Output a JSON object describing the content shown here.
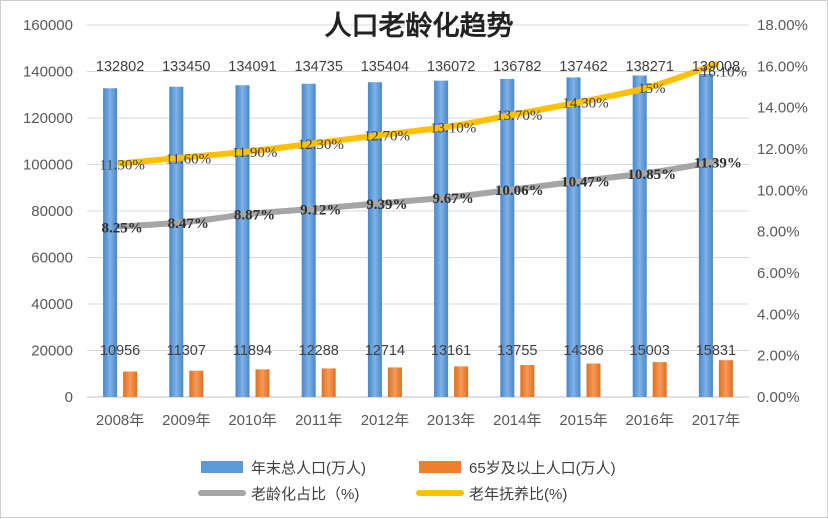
{
  "chart_data": {
    "type": "bar",
    "title": "人口老龄化趋势",
    "categories": [
      "2008年",
      "2009年",
      "2010年",
      "2011年",
      "2012年",
      "2013年",
      "2014年",
      "2015年",
      "2016年",
      "2017年"
    ],
    "series": [
      {
        "name": "年末总人口(万人)",
        "type": "bar",
        "axis": "left",
        "color": "#5b9bd5",
        "values": [
          132802,
          133450,
          134091,
          134735,
          135404,
          136072,
          136782,
          137462,
          138271,
          139008
        ],
        "labels": [
          "132802",
          "133450",
          "134091",
          "134735",
          "135404",
          "136072",
          "136782",
          "137462",
          "138271",
          "139008"
        ]
      },
      {
        "name": "65岁及以上人口(万人)",
        "type": "bar",
        "axis": "left",
        "color": "#ed7d31",
        "values": [
          10956,
          11307,
          11894,
          12288,
          12714,
          13161,
          13755,
          14386,
          15003,
          15831
        ],
        "labels": [
          "10956",
          "11307",
          "11894",
          "12288",
          "12714",
          "13161",
          "13755",
          "14386",
          "15003",
          "15831"
        ]
      },
      {
        "name": "老龄化占比（%)",
        "type": "line",
        "axis": "right",
        "color": "#a5a5a5",
        "values": [
          8.25,
          8.47,
          8.87,
          9.12,
          9.39,
          9.67,
          10.06,
          10.47,
          10.85,
          11.39
        ],
        "labels": [
          "8.25%",
          "8.47%",
          "8.87%",
          "9.12%",
          "9.39%",
          "9.67%",
          "10.06%",
          "10.47%",
          "10.85%",
          "11.39%"
        ]
      },
      {
        "name": "老年抚养比(%)",
        "type": "line",
        "axis": "right",
        "color": "#ffc000",
        "values": [
          11.3,
          11.6,
          11.9,
          12.3,
          12.7,
          13.1,
          13.7,
          14.3,
          15.0,
          16.1
        ],
        "labels": [
          "11.30%",
          "11.60%",
          "11.90%",
          "12.30%",
          "12.70%",
          "13.10%",
          "13.70%",
          "14.30%",
          "15%",
          "16.10%"
        ]
      }
    ],
    "ylim": [
      0,
      160000
    ],
    "yticks": [
      "0",
      "20000",
      "40000",
      "60000",
      "80000",
      "100000",
      "120000",
      "140000",
      "160000"
    ],
    "y2lim": [
      0,
      18
    ],
    "y2ticks": [
      "0.00%",
      "2.00%",
      "4.00%",
      "6.00%",
      "8.00%",
      "10.00%",
      "12.00%",
      "14.00%",
      "16.00%",
      "18.00%"
    ],
    "grid": true,
    "legend_position": "bottom"
  }
}
